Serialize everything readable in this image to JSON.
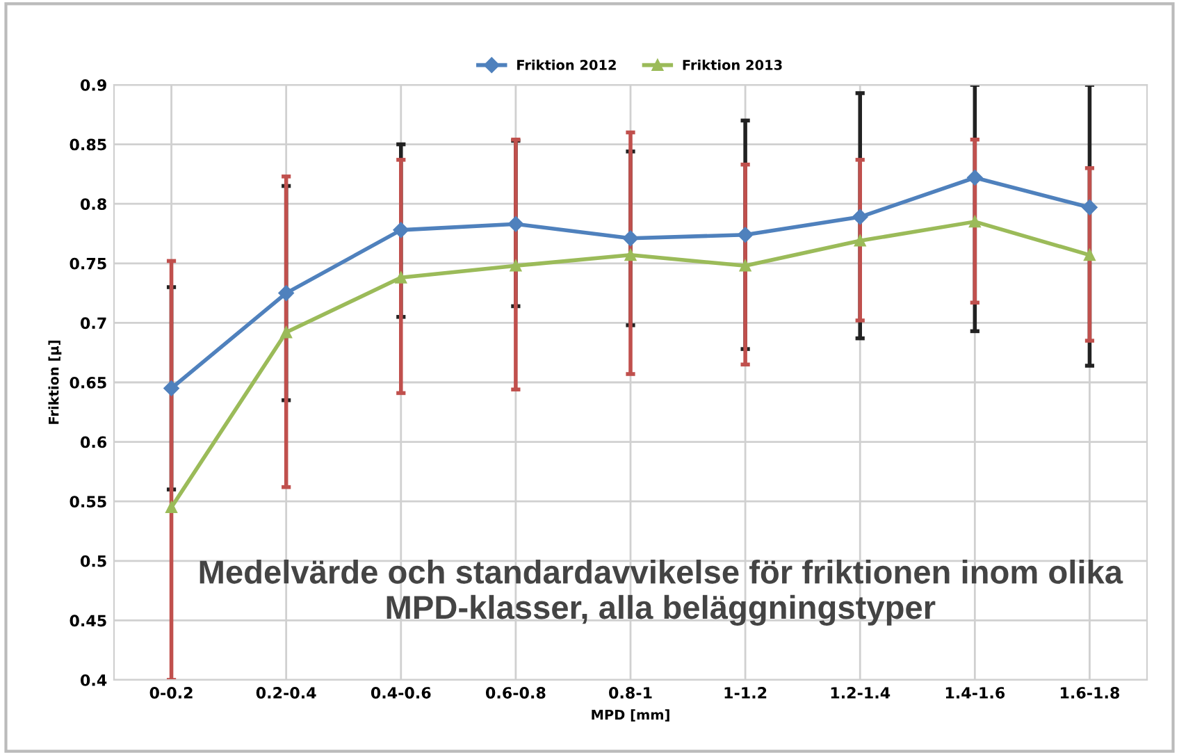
{
  "chart_data": {
    "type": "line",
    "xlabel": "MPD [mm]",
    "ylabel": "Friktion [µ]",
    "categories": [
      "0-0.2",
      "0.2-0.4",
      "0.4-0.6",
      "0.6-0.8",
      "0.8-1",
      "1-1.2",
      "1.2-1.4",
      "1.4-1.6",
      "1.6-1.8"
    ],
    "series": [
      {
        "name": "Friktion 2012",
        "color": "#4f81bd",
        "marker": "diamond",
        "values": [
          0.645,
          0.725,
          0.778,
          0.783,
          0.771,
          0.774,
          0.789,
          0.822,
          0.797
        ],
        "errors": [
          [
            0.56,
            0.73
          ],
          [
            0.635,
            0.815
          ],
          [
            0.705,
            0.85
          ],
          [
            0.714,
            0.853
          ],
          [
            0.698,
            0.844
          ],
          [
            0.678,
            0.87
          ],
          [
            0.687,
            0.893
          ],
          [
            0.693,
            0.9
          ],
          [
            0.664,
            0.9
          ]
        ]
      },
      {
        "name": "Friktion 2013",
        "color": "#9bbb59",
        "marker": "triangle",
        "values": [
          0.545,
          0.692,
          0.738,
          0.748,
          0.757,
          0.748,
          0.769,
          0.785,
          0.757
        ],
        "errors": [
          [
            0.4,
            0.752
          ],
          [
            0.562,
            0.823
          ],
          [
            0.641,
            0.837
          ],
          [
            0.644,
            0.854
          ],
          [
            0.657,
            0.86
          ],
          [
            0.665,
            0.833
          ],
          [
            0.702,
            0.837
          ],
          [
            0.717,
            0.854
          ],
          [
            0.685,
            0.83
          ]
        ]
      }
    ],
    "ylim": [
      0.4,
      0.9
    ],
    "yticks": [
      0.4,
      0.45,
      0.5,
      0.55,
      0.6,
      0.65,
      0.7,
      0.75,
      0.8,
      0.85,
      0.9
    ],
    "grid": true,
    "legend": "top",
    "line_style": "solid",
    "annotations": [
      "Medelvärde och standardavvikelse för friktionen inom olika MPD-klasser, alla beläggningstyper"
    ]
  }
}
